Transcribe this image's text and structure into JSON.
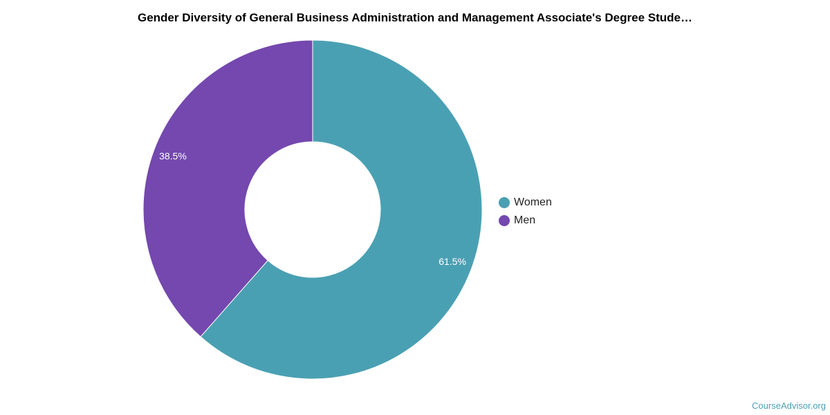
{
  "chart_data": {
    "type": "pie",
    "title": "Gender Diversity of General Business Administration and Management Associate's Degree Stude…",
    "slices": [
      {
        "label": "Women",
        "value": 61.5,
        "display": "61.5%",
        "color": "#4aa0b3"
      },
      {
        "label": "Men",
        "value": 38.5,
        "display": "38.5%",
        "color": "#7448ae"
      }
    ],
    "legend": {
      "placement": "right",
      "items": [
        {
          "label": "Women",
          "color": "#4aa0b3"
        },
        {
          "label": "Men",
          "color": "#7448ae"
        }
      ]
    }
  },
  "footer": {
    "source": "CourseAdvisor.org"
  }
}
